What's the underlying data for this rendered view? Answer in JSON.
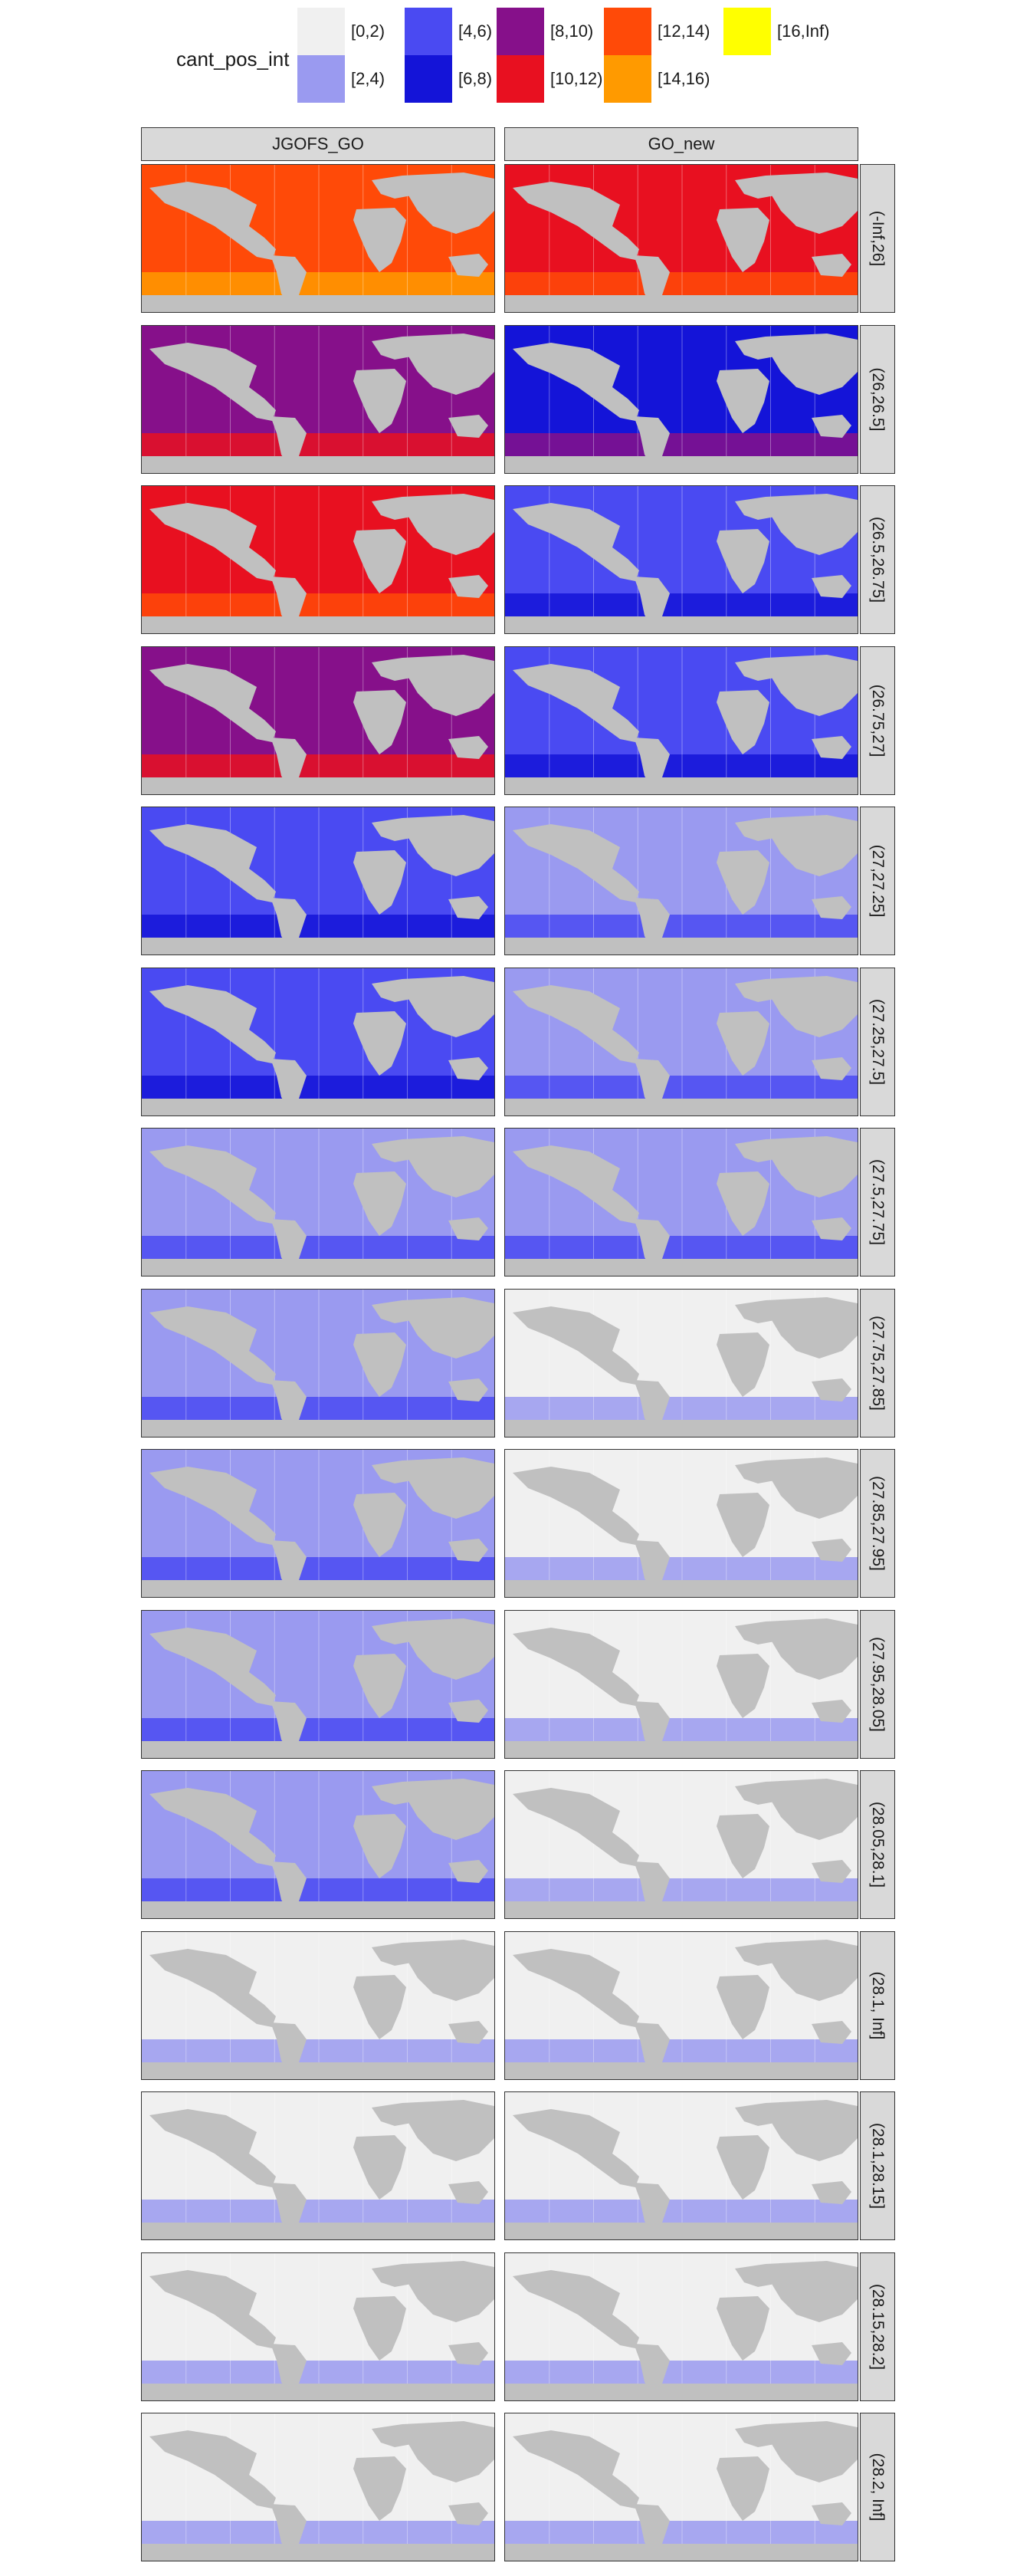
{
  "legend": {
    "title": "cant_pos_int",
    "classes": [
      {
        "label": "[0,2)",
        "color": "#f0f0f0"
      },
      {
        "label": "[2,4)",
        "color": "#9a9af0"
      },
      {
        "label": "[4,6)",
        "color": "#4a4af2"
      },
      {
        "label": "[6,8)",
        "color": "#1414d8"
      },
      {
        "label": "[8,10)",
        "color": "#86108a"
      },
      {
        "label": "[10,12)",
        "color": "#e81020"
      },
      {
        "label": "[12,14)",
        "color": "#ff4a08"
      },
      {
        "label": "[14,16)",
        "color": "#ff9a00"
      },
      {
        "label": "[16,Inf)",
        "color": "#ffff00"
      }
    ]
  },
  "columns": [
    "JGOFS_GO",
    "GO_new"
  ],
  "rows": [
    {
      "label": "(-Inf,26]"
    },
    {
      "label": "(26,26.5]"
    },
    {
      "label": "(26.5,26.75]"
    },
    {
      "label": "(26.75,27]"
    },
    {
      "label": "(27,27.25]"
    },
    {
      "label": "(27.25,27.5]"
    },
    {
      "label": "(27.5,27.75]"
    },
    {
      "label": "(27.75,27.85]"
    },
    {
      "label": "(27.85,27.95]"
    },
    {
      "label": "(27.95,28.05]"
    },
    {
      "label": "(28.05,28.1]"
    },
    {
      "label": "(28.1, Inf]"
    },
    {
      "label": "(28.1,28.15]"
    },
    {
      "label": "(28.15,28.2]"
    },
    {
      "label": "(28.2, Inf]"
    }
  ],
  "panel_fill_class": [
    [
      6,
      5
    ],
    [
      4,
      3
    ],
    [
      5,
      2
    ],
    [
      4,
      2
    ],
    [
      2,
      1
    ],
    [
      2,
      1
    ],
    [
      1,
      1
    ],
    [
      1,
      0
    ],
    [
      1,
      0
    ],
    [
      1,
      0
    ],
    [
      1,
      0
    ],
    [
      0,
      0
    ],
    [
      0,
      0
    ],
    [
      0,
      0
    ],
    [
      0,
      0
    ]
  ]
}
